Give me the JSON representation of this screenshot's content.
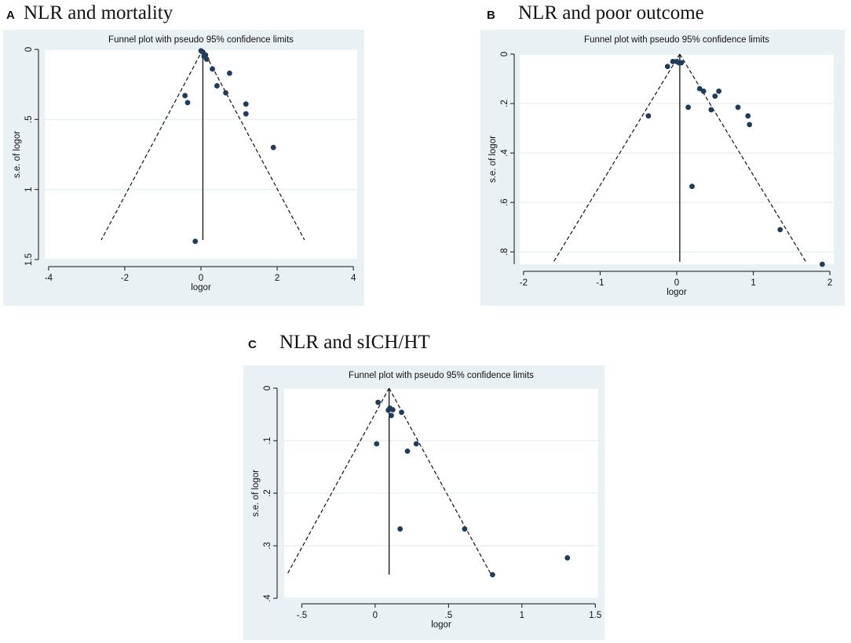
{
  "chart_data": [
    {
      "panel": "A",
      "panel_title": "NLR and mortality",
      "type": "scatter",
      "title": "Funnel plot with pseudo 95% confidence limits",
      "xlabel": "logor",
      "ylabel": "s.e. of logor",
      "x_ticks": [
        -4,
        -2,
        0,
        2,
        4
      ],
      "x_tick_labels": [
        "-4",
        "-2",
        "0",
        "2",
        "4"
      ],
      "y_ticks": [
        0,
        0.5,
        1,
        1.5
      ],
      "y_tick_labels": [
        "0",
        ".5",
        "1",
        "1.5"
      ],
      "xlim": [
        -4.1,
        4.1
      ],
      "ylim": [
        0,
        1.5
      ],
      "y_inverted": true,
      "pooled_estimate": 0.05,
      "ci_max_se": 1.36,
      "points": [
        {
          "x": 0.0,
          "y": 0.01
        },
        {
          "x": 0.05,
          "y": 0.02
        },
        {
          "x": 0.12,
          "y": 0.04
        },
        {
          "x": 0.08,
          "y": 0.05
        },
        {
          "x": 0.15,
          "y": 0.07
        },
        {
          "x": 0.3,
          "y": 0.14
        },
        {
          "x": 0.75,
          "y": 0.17
        },
        {
          "x": 0.42,
          "y": 0.26
        },
        {
          "x": 0.65,
          "y": 0.31
        },
        {
          "x": -0.42,
          "y": 0.33
        },
        {
          "x": -0.35,
          "y": 0.38
        },
        {
          "x": 1.18,
          "y": 0.39
        },
        {
          "x": 1.18,
          "y": 0.46
        },
        {
          "x": 1.9,
          "y": 0.7
        },
        {
          "x": -0.15,
          "y": 1.37
        }
      ]
    },
    {
      "panel": "B",
      "panel_title": "NLR and poor outcome",
      "type": "scatter",
      "title": "Funnel plot with pseudo 95% confidence limits",
      "xlabel": "logor",
      "ylabel": "s.e. of logor",
      "x_ticks": [
        -2,
        -1,
        0,
        1,
        2
      ],
      "x_tick_labels": [
        "-2",
        "-1",
        "0",
        "1",
        "2"
      ],
      "y_ticks": [
        0,
        0.2,
        0.4,
        0.6,
        0.8
      ],
      "y_tick_labels": [
        "0",
        ".2",
        ".4",
        ".6",
        ".8"
      ],
      "xlim": [
        -2.05,
        2.05
      ],
      "ylim": [
        0,
        0.85
      ],
      "y_inverted": true,
      "pooled_estimate": 0.04,
      "ci_max_se": 0.84,
      "points": [
        {
          "x": -0.12,
          "y": 0.05
        },
        {
          "x": -0.05,
          "y": 0.03
        },
        {
          "x": 0.0,
          "y": 0.03
        },
        {
          "x": 0.03,
          "y": 0.035
        },
        {
          "x": 0.06,
          "y": 0.035
        },
        {
          "x": 0.3,
          "y": 0.14
        },
        {
          "x": 0.35,
          "y": 0.15
        },
        {
          "x": 0.55,
          "y": 0.15
        },
        {
          "x": 0.5,
          "y": 0.17
        },
        {
          "x": -0.37,
          "y": 0.25
        },
        {
          "x": 0.15,
          "y": 0.215
        },
        {
          "x": 0.45,
          "y": 0.225
        },
        {
          "x": 0.8,
          "y": 0.215
        },
        {
          "x": 0.93,
          "y": 0.25
        },
        {
          "x": 0.95,
          "y": 0.285
        },
        {
          "x": 0.2,
          "y": 0.535
        },
        {
          "x": 1.35,
          "y": 0.71
        },
        {
          "x": 1.9,
          "y": 0.85
        }
      ]
    },
    {
      "panel": "C",
      "panel_title": "NLR and sICH/HT",
      "type": "scatter",
      "title": "Funnel plot with pseudo 95% confidence limits",
      "xlabel": "logor",
      "ylabel": "s.e. of logor",
      "x_ticks": [
        -0.5,
        0,
        0.5,
        1,
        1.5
      ],
      "x_tick_labels": [
        "-.5",
        "0",
        ".5",
        "1",
        "1.5"
      ],
      "y_ticks": [
        0,
        0.1,
        0.2,
        0.3,
        0.4
      ],
      "y_tick_labels": [
        "0",
        ".1",
        ".2",
        ".3",
        ".4"
      ],
      "xlim": [
        -0.62,
        1.52
      ],
      "ylim": [
        0,
        0.4
      ],
      "y_inverted": true,
      "pooled_estimate": 0.095,
      "ci_max_se": 0.355,
      "points": [
        {
          "x": 0.02,
          "y": 0.027
        },
        {
          "x": 0.09,
          "y": 0.042
        },
        {
          "x": 0.1,
          "y": 0.038
        },
        {
          "x": 0.12,
          "y": 0.041
        },
        {
          "x": 0.11,
          "y": 0.052
        },
        {
          "x": 0.18,
          "y": 0.046
        },
        {
          "x": 0.01,
          "y": 0.106
        },
        {
          "x": 0.22,
          "y": 0.12
        },
        {
          "x": 0.28,
          "y": 0.106
        },
        {
          "x": 0.17,
          "y": 0.268
        },
        {
          "x": 0.61,
          "y": 0.268
        },
        {
          "x": 0.8,
          "y": 0.355
        },
        {
          "x": 1.31,
          "y": 0.323
        }
      ]
    }
  ]
}
